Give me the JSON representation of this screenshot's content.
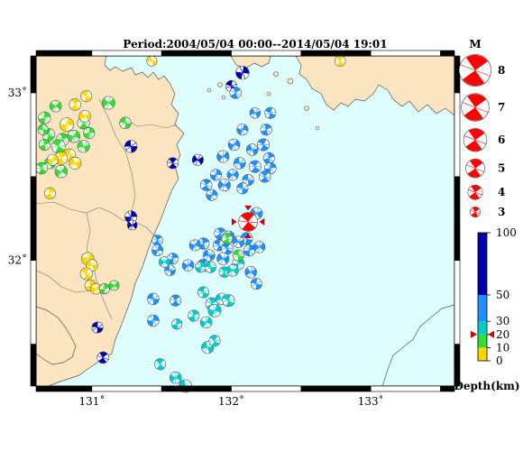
{
  "title": "Period:2004/05/04 00:00--2014/05/04 19:01",
  "map": {
    "lon_range": [
      130.6,
      133.6
    ],
    "lat_range": [
      31.25,
      33.22
    ],
    "lon_ticks": [
      {
        "value": 131,
        "label": "131˚"
      },
      {
        "value": 132,
        "label": "132˚"
      },
      {
        "value": 133,
        "label": "133˚"
      }
    ],
    "lat_ticks": [
      {
        "value": 32,
        "label": "32˚"
      },
      {
        "value": 33,
        "label": "33˚"
      }
    ],
    "colors": {
      "sea": "#dfffff",
      "land": "#fbe5c0",
      "coast": "#555555"
    }
  },
  "magnitude_legend": {
    "title": "M",
    "items": [
      {
        "m": 8,
        "label": "8"
      },
      {
        "m": 7,
        "label": "7"
      },
      {
        "m": 6,
        "label": "6"
      },
      {
        "m": 5,
        "label": "5"
      },
      {
        "m": 4,
        "label": "4"
      },
      {
        "m": 3,
        "label": "3"
      }
    ],
    "color": "#ff0000"
  },
  "depth_scale": {
    "unit_label": "Depth(km)",
    "ticks": [
      {
        "value": 100,
        "label": "100"
      },
      {
        "value": 50,
        "label": "50"
      },
      {
        "value": 30,
        "label": "30"
      },
      {
        "value": 20,
        "label": "20"
      },
      {
        "value": 10,
        "label": "10"
      },
      {
        "value": 0,
        "label": "0"
      }
    ],
    "bands": [
      {
        "from": 0,
        "to": 10,
        "color": "#ffd700"
      },
      {
        "from": 10,
        "to": 20,
        "color": "#33dd33"
      },
      {
        "from": 20,
        "to": 30,
        "color": "#00cccc"
      },
      {
        "from": 30,
        "to": 50,
        "color": "#1e90ff"
      },
      {
        "from": 50,
        "to": 100,
        "color": "#0000aa"
      }
    ],
    "marker_depth": 20
  },
  "chart_data": {
    "type": "scatter",
    "title": "Period:2004/05/04 00:00--2014/05/04 19:01",
    "xlabel": "",
    "ylabel": "",
    "xlim": [
      130.6,
      133.6
    ],
    "ylim": [
      31.25,
      33.22
    ],
    "latest_event": {
      "lon": 132.12,
      "lat": 32.23,
      "m": 5,
      "depth": 40
    },
    "events": [
      {
        "lon": 130.69,
        "lat": 32.75,
        "m": 3.5,
        "depth": 15
      },
      {
        "lon": 130.79,
        "lat": 32.72,
        "m": 3.6,
        "depth": 15
      },
      {
        "lon": 130.87,
        "lat": 32.74,
        "m": 3.5,
        "depth": 15
      },
      {
        "lon": 130.94,
        "lat": 32.68,
        "m": 3.4,
        "depth": 15
      },
      {
        "lon": 130.76,
        "lat": 32.68,
        "m": 3.8,
        "depth": 15
      },
      {
        "lon": 130.66,
        "lat": 32.69,
        "m": 3.2,
        "depth": 15
      },
      {
        "lon": 130.78,
        "lat": 32.53,
        "m": 3.5,
        "depth": 15
      },
      {
        "lon": 130.7,
        "lat": 32.58,
        "m": 3.2,
        "depth": 15
      },
      {
        "lon": 130.64,
        "lat": 32.55,
        "m": 3.3,
        "depth": 15
      },
      {
        "lon": 130.66,
        "lat": 32.85,
        "m": 3.4,
        "depth": 15
      },
      {
        "lon": 130.74,
        "lat": 32.92,
        "m": 3.3,
        "depth": 15
      },
      {
        "lon": 130.65,
        "lat": 32.78,
        "m": 3.0,
        "depth": 15
      },
      {
        "lon": 130.94,
        "lat": 32.82,
        "m": 3.4,
        "depth": 15
      },
      {
        "lon": 130.98,
        "lat": 32.76,
        "m": 3.2,
        "depth": 15
      },
      {
        "lon": 131.12,
        "lat": 32.94,
        "m": 3.6,
        "depth": 15
      },
      {
        "lon": 131.24,
        "lat": 32.82,
        "m": 3.3,
        "depth": 15
      },
      {
        "lon": 130.88,
        "lat": 32.93,
        "m": 3.3,
        "depth": 5
      },
      {
        "lon": 130.82,
        "lat": 32.81,
        "m": 3.8,
        "depth": 5
      },
      {
        "lon": 130.95,
        "lat": 32.86,
        "m": 3.3,
        "depth": 5
      },
      {
        "lon": 130.84,
        "lat": 32.63,
        "m": 3.4,
        "depth": 5
      },
      {
        "lon": 130.78,
        "lat": 32.61,
        "m": 3.6,
        "depth": 5
      },
      {
        "lon": 130.72,
        "lat": 32.6,
        "m": 3.2,
        "depth": 5
      },
      {
        "lon": 130.88,
        "lat": 32.58,
        "m": 3.4,
        "depth": 5
      },
      {
        "lon": 130.96,
        "lat": 32.98,
        "m": 3.2,
        "depth": 5
      },
      {
        "lon": 130.7,
        "lat": 32.4,
        "m": 3.2,
        "depth": 5
      },
      {
        "lon": 130.97,
        "lat": 32.01,
        "m": 3.5,
        "depth": 5
      },
      {
        "lon": 131.0,
        "lat": 31.97,
        "m": 3.3,
        "depth": 5
      },
      {
        "lon": 130.96,
        "lat": 31.92,
        "m": 3.4,
        "depth": 5
      },
      {
        "lon": 130.99,
        "lat": 31.85,
        "m": 3.2,
        "depth": 5
      },
      {
        "lon": 131.03,
        "lat": 31.83,
        "m": 3.1,
        "depth": 5
      },
      {
        "lon": 131.43,
        "lat": 33.19,
        "m": 3.0,
        "depth": 5
      },
      {
        "lon": 132.78,
        "lat": 33.19,
        "m": 3.1,
        "depth": 5
      },
      {
        "lon": 131.09,
        "lat": 31.83,
        "m": 3.0,
        "depth": 15
      },
      {
        "lon": 131.16,
        "lat": 31.85,
        "m": 2.9,
        "depth": 15
      },
      {
        "lon": 131.28,
        "lat": 32.68,
        "m": 3.5,
        "depth": 60
      },
      {
        "lon": 131.58,
        "lat": 32.58,
        "m": 3.2,
        "depth": 60
      },
      {
        "lon": 131.28,
        "lat": 32.26,
        "m": 3.4,
        "depth": 60
      },
      {
        "lon": 131.29,
        "lat": 32.21,
        "m": 2.9,
        "depth": 60
      },
      {
        "lon": 131.04,
        "lat": 31.6,
        "m": 3.2,
        "depth": 60
      },
      {
        "lon": 131.08,
        "lat": 31.42,
        "m": 3.3,
        "depth": 60
      },
      {
        "lon": 132.08,
        "lat": 33.12,
        "m": 3.7,
        "depth": 60
      },
      {
        "lon": 131.76,
        "lat": 32.6,
        "m": 3.2,
        "depth": 60
      },
      {
        "lon": 132.0,
        "lat": 33.04,
        "m": 3.2,
        "depth": 60
      },
      {
        "lon": 132.03,
        "lat": 33.0,
        "m": 3.3,
        "depth": 40
      },
      {
        "lon": 132.08,
        "lat": 32.78,
        "m": 3.2,
        "depth": 40
      },
      {
        "lon": 132.17,
        "lat": 32.88,
        "m": 3.1,
        "depth": 40
      },
      {
        "lon": 132.28,
        "lat": 32.88,
        "m": 3.2,
        "depth": 40
      },
      {
        "lon": 132.25,
        "lat": 32.78,
        "m": 3.2,
        "depth": 40
      },
      {
        "lon": 132.02,
        "lat": 32.69,
        "m": 3.3,
        "depth": 40
      },
      {
        "lon": 132.15,
        "lat": 32.66,
        "m": 3.3,
        "depth": 40
      },
      {
        "lon": 132.23,
        "lat": 32.69,
        "m": 3.4,
        "depth": 40
      },
      {
        "lon": 132.27,
        "lat": 32.61,
        "m": 3.2,
        "depth": 40
      },
      {
        "lon": 131.94,
        "lat": 32.62,
        "m": 3.4,
        "depth": 40
      },
      {
        "lon": 132.06,
        "lat": 32.58,
        "m": 3.3,
        "depth": 40
      },
      {
        "lon": 132.17,
        "lat": 32.56,
        "m": 3.4,
        "depth": 40
      },
      {
        "lon": 132.28,
        "lat": 32.55,
        "m": 3.3,
        "depth": 40
      },
      {
        "lon": 132.01,
        "lat": 32.51,
        "m": 3.2,
        "depth": 40
      },
      {
        "lon": 132.12,
        "lat": 32.48,
        "m": 3.2,
        "depth": 40
      },
      {
        "lon": 132.24,
        "lat": 32.5,
        "m": 3.3,
        "depth": 40
      },
      {
        "lon": 131.89,
        "lat": 32.51,
        "m": 3.2,
        "depth": 40
      },
      {
        "lon": 131.95,
        "lat": 32.45,
        "m": 3.4,
        "depth": 40
      },
      {
        "lon": 132.08,
        "lat": 32.43,
        "m": 3.2,
        "depth": 40
      },
      {
        "lon": 131.82,
        "lat": 32.45,
        "m": 3.3,
        "depth": 40
      },
      {
        "lon": 131.86,
        "lat": 32.39,
        "m": 3.2,
        "depth": 40
      },
      {
        "lon": 132.18,
        "lat": 32.28,
        "m": 3.4,
        "depth": 40
      },
      {
        "lon": 132.11,
        "lat": 32.13,
        "m": 3.4,
        "depth": 40
      },
      {
        "lon": 131.92,
        "lat": 32.16,
        "m": 3.3,
        "depth": 40
      },
      {
        "lon": 131.98,
        "lat": 32.14,
        "m": 3.4,
        "depth": 40
      },
      {
        "lon": 132.05,
        "lat": 32.11,
        "m": 3.3,
        "depth": 40
      },
      {
        "lon": 131.91,
        "lat": 32.09,
        "m": 3.2,
        "depth": 40
      },
      {
        "lon": 131.8,
        "lat": 32.1,
        "m": 3.3,
        "depth": 40
      },
      {
        "lon": 131.74,
        "lat": 32.09,
        "m": 3.2,
        "depth": 40
      },
      {
        "lon": 131.84,
        "lat": 32.03,
        "m": 3.3,
        "depth": 40
      },
      {
        "lon": 131.97,
        "lat": 32.07,
        "m": 3.3,
        "depth": 40
      },
      {
        "lon": 131.58,
        "lat": 32.01,
        "m": 3.2,
        "depth": 40
      },
      {
        "lon": 131.69,
        "lat": 31.97,
        "m": 3.3,
        "depth": 40
      },
      {
        "lon": 131.56,
        "lat": 31.94,
        "m": 3.1,
        "depth": 40
      },
      {
        "lon": 131.8,
        "lat": 31.97,
        "m": 3.4,
        "depth": 40
      },
      {
        "lon": 132.13,
        "lat": 32.06,
        "m": 3.3,
        "depth": 40
      },
      {
        "lon": 132.2,
        "lat": 32.08,
        "m": 3.3,
        "depth": 40
      },
      {
        "lon": 131.44,
        "lat": 31.77,
        "m": 3.3,
        "depth": 40
      },
      {
        "lon": 131.6,
        "lat": 31.76,
        "m": 3.2,
        "depth": 40
      },
      {
        "lon": 131.44,
        "lat": 31.64,
        "m": 3.3,
        "depth": 40
      },
      {
        "lon": 132.14,
        "lat": 31.93,
        "m": 3.3,
        "depth": 40
      },
      {
        "lon": 132.18,
        "lat": 31.86,
        "m": 3.2,
        "depth": 40
      },
      {
        "lon": 131.47,
        "lat": 32.12,
        "m": 3.1,
        "depth": 40
      },
      {
        "lon": 131.47,
        "lat": 32.06,
        "m": 3.2,
        "depth": 40
      },
      {
        "lon": 131.94,
        "lat": 32.01,
        "m": 3.4,
        "depth": 40
      },
      {
        "lon": 131.8,
        "lat": 31.81,
        "m": 3.2,
        "depth": 25
      },
      {
        "lon": 131.86,
        "lat": 31.74,
        "m": 3.5,
        "depth": 25
      },
      {
        "lon": 131.88,
        "lat": 31.7,
        "m": 3.6,
        "depth": 25
      },
      {
        "lon": 131.93,
        "lat": 31.77,
        "m": 3.3,
        "depth": 25
      },
      {
        "lon": 131.98,
        "lat": 31.76,
        "m": 3.4,
        "depth": 25
      },
      {
        "lon": 131.73,
        "lat": 31.67,
        "m": 3.2,
        "depth": 25
      },
      {
        "lon": 131.82,
        "lat": 31.63,
        "m": 3.3,
        "depth": 25
      },
      {
        "lon": 131.83,
        "lat": 31.48,
        "m": 3.4,
        "depth": 25
      },
      {
        "lon": 131.88,
        "lat": 31.52,
        "m": 3.2,
        "depth": 25
      },
      {
        "lon": 131.61,
        "lat": 31.62,
        "m": 3.0,
        "depth": 25
      },
      {
        "lon": 131.6,
        "lat": 31.3,
        "m": 3.3,
        "depth": 25
      },
      {
        "lon": 131.67,
        "lat": 31.25,
        "m": 3.6,
        "depth": 25
      },
      {
        "lon": 131.49,
        "lat": 31.38,
        "m": 3.2,
        "depth": 25
      },
      {
        "lon": 131.78,
        "lat": 31.96,
        "m": 3.1,
        "depth": 25
      },
      {
        "lon": 131.52,
        "lat": 31.99,
        "m": 3.1,
        "depth": 25
      },
      {
        "lon": 131.85,
        "lat": 31.96,
        "m": 3.2,
        "depth": 25
      },
      {
        "lon": 131.95,
        "lat": 31.93,
        "m": 3.1,
        "depth": 25
      },
      {
        "lon": 132.05,
        "lat": 31.98,
        "m": 3.4,
        "depth": 25
      },
      {
        "lon": 132.01,
        "lat": 31.94,
        "m": 3.3,
        "depth": 25
      },
      {
        "lon": 132.05,
        "lat": 32.03,
        "m": 3.2,
        "depth": 15
      },
      {
        "lon": 131.97,
        "lat": 32.13,
        "m": 3.1,
        "depth": 15
      }
    ]
  }
}
